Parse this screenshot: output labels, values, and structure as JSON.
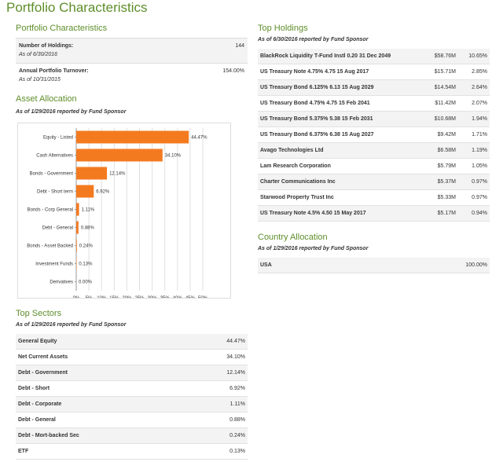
{
  "page_title": "Portfolio Characteristics",
  "characteristics": {
    "title": "Portfolio Characteristics",
    "holdings_label": "Number of Holdings:",
    "holdings_value": "144",
    "holdings_date": "As of 6/30/2016",
    "turnover_label": "Annual Portfolio Turnover:",
    "turnover_value": "154.00%",
    "turnover_date": "As of 10/31/2015"
  },
  "asset_allocation": {
    "title": "Asset Allocation",
    "asof": "As of 1/29/2016 reported by Fund Sponsor"
  },
  "chart_data": {
    "type": "bar",
    "orientation": "horizontal",
    "categories": [
      "Equity - Listed",
      "Cash Alternatives",
      "Bonds - Government",
      "Debt - Short term",
      "Bonds - Corp General",
      "Debt - General",
      "Bonds - Asset Backed",
      "Investment Funds",
      "Derivatives"
    ],
    "values": [
      44.47,
      34.1,
      12.14,
      6.92,
      1.11,
      0.88,
      0.24,
      0.13,
      0.0
    ],
    "value_labels": [
      "44.47%",
      "34.10%",
      "12.14%",
      "6.92%",
      "1.11%",
      "0.88%",
      "0.24%",
      "0.13%",
      "0.00%"
    ],
    "xlim": [
      0,
      50
    ],
    "ticks": [
      "0%",
      "5%",
      "10%",
      "15%",
      "20%",
      "25%",
      "30%",
      "35%",
      "40%",
      "45%",
      "50%"
    ],
    "bar_color": "#f47a20",
    "grid": true
  },
  "top_sectors": {
    "title": "Top Sectors",
    "asof": "As of 1/29/2016 reported by Fund Sponsor",
    "rows": [
      {
        "name": "General Equity",
        "pct": "44.47%"
      },
      {
        "name": "Net Current Assets",
        "pct": "34.10%"
      },
      {
        "name": "Debt - Government",
        "pct": "12.14%"
      },
      {
        "name": "Debt - Short",
        "pct": "6.92%"
      },
      {
        "name": "Debt - Corporate",
        "pct": "1.11%"
      },
      {
        "name": "Debt - General",
        "pct": "0.88%"
      },
      {
        "name": "Debt - Mort-backed Sec",
        "pct": "0.24%"
      },
      {
        "name": "ETF",
        "pct": "0.13%"
      }
    ]
  },
  "top_holdings": {
    "title": "Top Holdings",
    "asof": "As of 6/30/2016 reported by Fund Sponsor",
    "rows": [
      {
        "name": "BlackRock Liquidity T-Fund Instl 0.20 31 Dec 2049",
        "value": "$58.76M",
        "pct": "10.65%"
      },
      {
        "name": "US Treasury Note 4.75% 4.75 15 Aug 2017",
        "value": "$15.71M",
        "pct": "2.85%"
      },
      {
        "name": "US Treasury Bond 6.125% 6.13 15 Aug 2029",
        "value": "$14.54M",
        "pct": "2.64%"
      },
      {
        "name": "US Treasury Bond 4.75% 4.75 15 Feb 2041",
        "value": "$11.42M",
        "pct": "2.07%"
      },
      {
        "name": "US Treasury Bond 5.375% 5.38 15 Feb 2031",
        "value": "$10.68M",
        "pct": "1.94%"
      },
      {
        "name": "US Treasury Bond 6.375% 6.38 15 Aug 2027",
        "value": "$9.42M",
        "pct": "1.71%"
      },
      {
        "name": "Avago Technologies Ltd",
        "value": "$6.58M",
        "pct": "1.19%"
      },
      {
        "name": "Lam Research Corporation",
        "value": "$5.79M",
        "pct": "1.05%"
      },
      {
        "name": "Charter Communications Inc",
        "value": "$5.37M",
        "pct": "0.97%"
      },
      {
        "name": "Starwood Property Trust Inc",
        "value": "$5.33M",
        "pct": "0.97%"
      },
      {
        "name": "US Treasury Note 4.5% 4.50 15 May 2017",
        "value": "$5.17M",
        "pct": "0.94%"
      }
    ]
  },
  "country_allocation": {
    "title": "Country Allocation",
    "asof": "As of 1/29/2016 reported by Fund Sponsor",
    "rows": [
      {
        "name": "USA",
        "pct": "100.00%"
      }
    ]
  }
}
